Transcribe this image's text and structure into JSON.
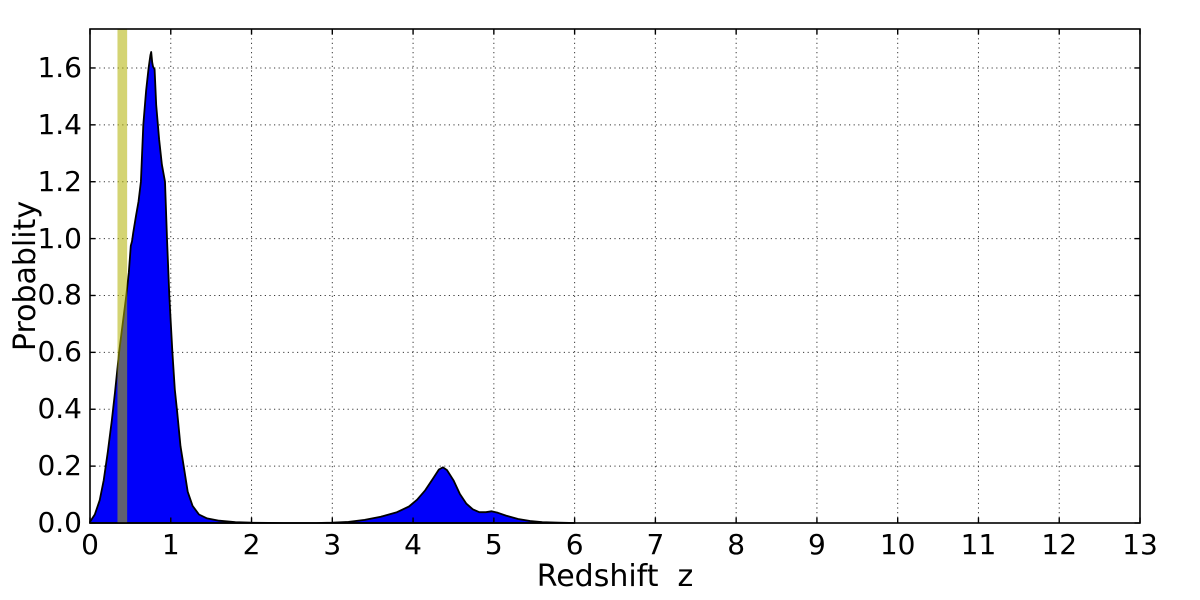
{
  "chart_data": {
    "type": "area",
    "title": "",
    "xlabel": "Redshift  z",
    "ylabel": "Probablity",
    "xlim": [
      0,
      13
    ],
    "ylim": [
      0,
      1.737
    ],
    "xticks": [
      "0",
      "1",
      "2",
      "3",
      "4",
      "5",
      "6",
      "7",
      "8",
      "9",
      "10",
      "11",
      "12",
      "13"
    ],
    "yticks": [
      "0.0",
      "0.2",
      "0.4",
      "0.6",
      "0.8",
      "1.0",
      "1.2",
      "1.4",
      "1.6"
    ],
    "grid": {
      "on": true,
      "linestyle": "dotted",
      "color": "#3a3a3a"
    },
    "legend": {
      "visible": false
    },
    "series": [
      {
        "name": "redshift-probability-density",
        "fill_color": "#0000fa",
        "line_color": "#000000",
        "points": [
          [
            0.0,
            0.004
          ],
          [
            0.06,
            0.03
          ],
          [
            0.12,
            0.08
          ],
          [
            0.17,
            0.15
          ],
          [
            0.22,
            0.25
          ],
          [
            0.27,
            0.36
          ],
          [
            0.31,
            0.46
          ],
          [
            0.36,
            0.6
          ],
          [
            0.4,
            0.69
          ],
          [
            0.45,
            0.8
          ],
          [
            0.48,
            0.88
          ],
          [
            0.505,
            0.975
          ],
          [
            0.52,
            0.99
          ],
          [
            0.535,
            1.02
          ],
          [
            0.57,
            1.08
          ],
          [
            0.6,
            1.13
          ],
          [
            0.63,
            1.2
          ],
          [
            0.66,
            1.4
          ],
          [
            0.695,
            1.52
          ],
          [
            0.725,
            1.6
          ],
          [
            0.748,
            1.645
          ],
          [
            0.758,
            1.656
          ],
          [
            0.77,
            1.62
          ],
          [
            0.78,
            1.605
          ],
          [
            0.8,
            1.595
          ],
          [
            0.82,
            1.47
          ],
          [
            0.855,
            1.35
          ],
          [
            0.89,
            1.26
          ],
          [
            0.928,
            1.2
          ],
          [
            0.953,
            1.0
          ],
          [
            0.982,
            0.8
          ],
          [
            1.02,
            0.6
          ],
          [
            1.05,
            0.47
          ],
          [
            1.08,
            0.39
          ],
          [
            1.12,
            0.27
          ],
          [
            1.16,
            0.2
          ],
          [
            1.21,
            0.11
          ],
          [
            1.27,
            0.06
          ],
          [
            1.35,
            0.03
          ],
          [
            1.45,
            0.016
          ],
          [
            1.6,
            0.008
          ],
          [
            1.8,
            0.003
          ],
          [
            2.0,
            0.001
          ],
          [
            2.4,
            0.0
          ],
          [
            2.8,
            0.0
          ],
          [
            3.0,
            0.001
          ],
          [
            3.2,
            0.004
          ],
          [
            3.4,
            0.011
          ],
          [
            3.6,
            0.022
          ],
          [
            3.8,
            0.038
          ],
          [
            3.95,
            0.058
          ],
          [
            4.05,
            0.082
          ],
          [
            4.15,
            0.115
          ],
          [
            4.25,
            0.158
          ],
          [
            4.32,
            0.188
          ],
          [
            4.37,
            0.196
          ],
          [
            4.42,
            0.186
          ],
          [
            4.5,
            0.15
          ],
          [
            4.58,
            0.102
          ],
          [
            4.66,
            0.068
          ],
          [
            4.74,
            0.048
          ],
          [
            4.82,
            0.038
          ],
          [
            4.9,
            0.038
          ],
          [
            4.97,
            0.041
          ],
          [
            5.05,
            0.036
          ],
          [
            5.15,
            0.026
          ],
          [
            5.3,
            0.014
          ],
          [
            5.45,
            0.007
          ],
          [
            5.6,
            0.003
          ],
          [
            5.8,
            0.001
          ],
          [
            6.0,
            0.0
          ]
        ]
      }
    ],
    "annotations": [
      {
        "name": "highlight-vspan",
        "type": "vspan",
        "x0": 0.34,
        "x1": 0.46,
        "color": "#b0b000",
        "opacity": 0.55
      }
    ]
  },
  "colors": {
    "background": "#ffffff",
    "frame": "#000000",
    "tick": "#000000"
  }
}
